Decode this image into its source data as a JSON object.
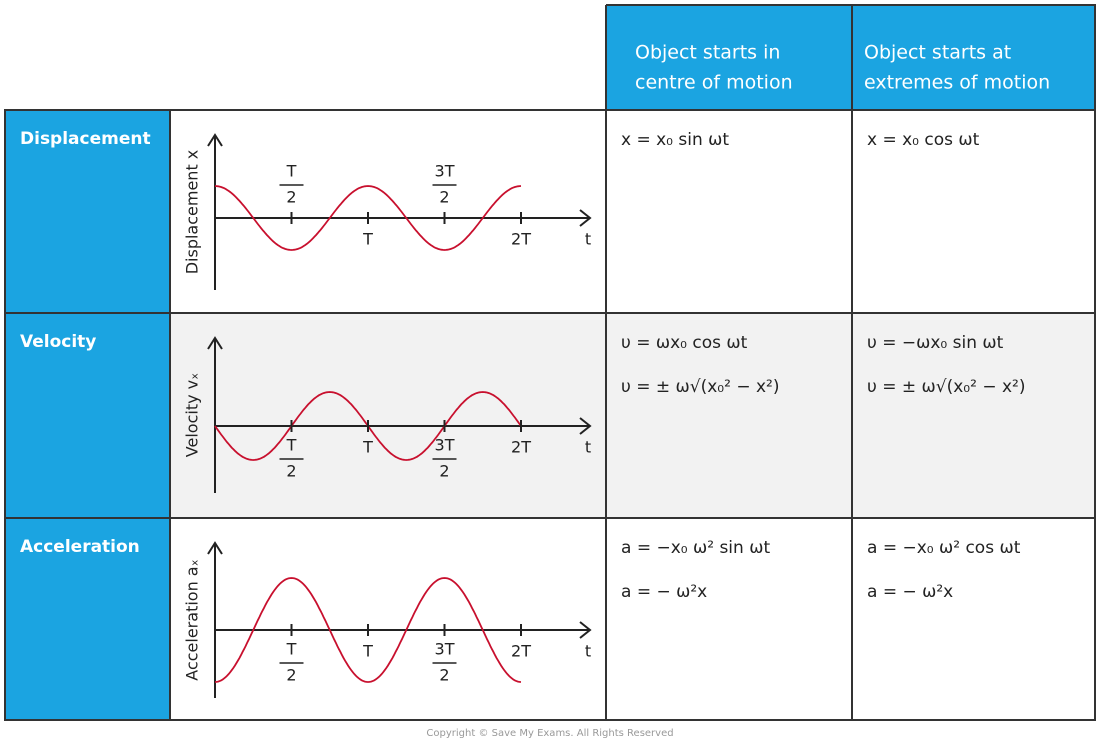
{
  "header": {
    "centre": [
      "Object starts in",
      "centre of motion"
    ],
    "extremes": [
      "Object starts at",
      "extremes of motion"
    ]
  },
  "rows": [
    {
      "label": "Displacement",
      "y_axis": "Displacement x",
      "x_axis": "t",
      "ticks": [
        {
          "num": "T",
          "den": "2"
        },
        "T",
        {
          "num": "3T",
          "den": "2"
        },
        "2T"
      ],
      "centre": [
        "x = x₀ sin ωt"
      ],
      "extremes": [
        "x = x₀ cos ωt"
      ]
    },
    {
      "label": "Velocity",
      "y_axis": "Velocity vₓ",
      "x_axis": "t",
      "ticks": [
        {
          "num": "T",
          "den": "2"
        },
        "T",
        {
          "num": "3T",
          "den": "2"
        },
        "2T"
      ],
      "centre": [
        "υ = ωx₀ cos ωt",
        "υ = ± ω√(x₀² − x²)"
      ],
      "extremes": [
        "υ = −ωx₀ sin ωt",
        "υ = ± ω√(x₀² − x²)"
      ]
    },
    {
      "label": "Acceleration",
      "y_axis": "Acceleration aₓ",
      "x_axis": "t",
      "ticks": [
        {
          "num": "T",
          "den": "2"
        },
        "T",
        {
          "num": "3T",
          "den": "2"
        },
        "2T"
      ],
      "centre": [
        "a = −x₀ ω² sin ωt",
        "a = − ω²x"
      ],
      "extremes": [
        "a = −x₀ ω² cos ωt",
        "a = − ω²x"
      ]
    }
  ],
  "copyright": "Copyright © Save My Exams. All Rights Reserved"
}
